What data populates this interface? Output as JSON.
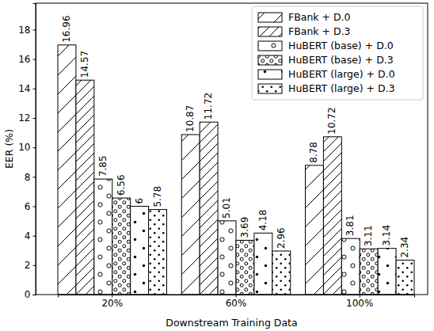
{
  "chart_data": {
    "type": "bar",
    "x_label": "Downstream Training Data",
    "y_label": "EER (%)",
    "categories": [
      "20%",
      "60%",
      "100%"
    ],
    "series": [
      {
        "name": "FBank + D.0",
        "color": "#ffffff",
        "values": [
          16.96,
          10.87,
          8.78
        ]
      },
      {
        "name": "FBank + D.3",
        "color": "#ffffff",
        "values": [
          14.57,
          11.72,
          10.72
        ]
      },
      {
        "name": "HuBERT (base) + D.0",
        "color": "#ffffff",
        "values": [
          7.85,
          5.01,
          3.81
        ]
      },
      {
        "name": "HuBERT (base) + D.3",
        "color": "#ffffff",
        "values": [
          6.56,
          3.69,
          3.11
        ]
      },
      {
        "name": "HuBERT (large) + D.0",
        "color": "#ffffff",
        "values": [
          6,
          4.18,
          3.14
        ]
      },
      {
        "name": "HuBERT (large) + D.3",
        "color": "#ffffff",
        "values": [
          5.78,
          2.96,
          2.34
        ]
      }
    ],
    "ylim": [
      0,
      19.8
    ],
    "yticks": [
      0,
      2,
      4,
      6,
      8,
      10,
      12,
      14,
      16,
      18
    ],
    "grid": false,
    "legend": "upper right",
    "data_labels": true
  }
}
